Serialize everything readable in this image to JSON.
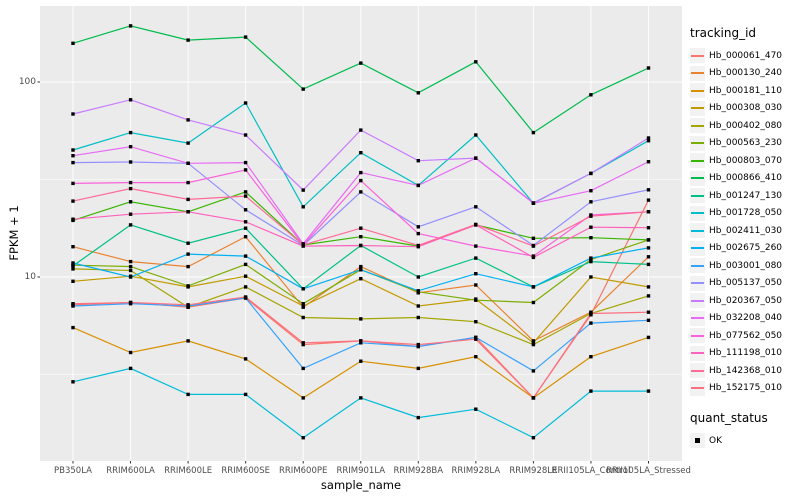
{
  "colors": {
    "panel_bg": "#EBEBEB",
    "grid": "#FFFFFF",
    "axis_text": "#4D4D4D",
    "tick_mark": "#333333",
    "point": "#000000",
    "legend_key_bg": "#F2F2F2"
  },
  "axes": {
    "y_tick_labels": [
      "100",
      "10"
    ],
    "y_tick_values": [
      100,
      10
    ],
    "y_minor_values": [
      31.623,
      3.1623
    ]
  },
  "chart_data": {
    "type": "line",
    "title": "",
    "xlabel": "sample_name",
    "ylabel": "FPKM + 1",
    "y_scale": "log10",
    "ylim": [
      1.17,
      245
    ],
    "grid": "on",
    "legend_position": "right",
    "point_shape": "filled-black-square",
    "categories": [
      "PB350LA",
      "RRIM600LA",
      "RRIM600LE",
      "RRIM600SE",
      "RRIM600PE",
      "RRIM901LA",
      "RRIM928BA",
      "RRIM928LA",
      "RRIM928LE",
      "RRII105LA_Control",
      "RRII105LA_Stressed"
    ],
    "legend": {
      "color_title": "tracking_id",
      "shape_title": "quant_status",
      "shape_entries": [
        {
          "label": "OK"
        }
      ]
    },
    "series": [
      {
        "name": "Hb_000061_470",
        "color": "#F8766D",
        "values": [
          7.2,
          7.4,
          7.0,
          7.8,
          4.5,
          4.7,
          4.4,
          4.9,
          2.4,
          6.4,
          24.8
        ]
      },
      {
        "name": "Hb_000130_240",
        "color": "#EA8331",
        "values": [
          14.3,
          12.0,
          11.3,
          16.1,
          7.0,
          11.3,
          8.3,
          9.1,
          4.7,
          6.6,
          12.7
        ]
      },
      {
        "name": "Hb_000181_110",
        "color": "#D89000",
        "values": [
          5.5,
          4.1,
          4.7,
          3.8,
          2.4,
          3.7,
          3.4,
          3.9,
          2.4,
          3.9,
          4.9
        ]
      },
      {
        "name": "Hb_000308_030",
        "color": "#C09B00",
        "values": [
          9.5,
          10.1,
          8.9,
          10.1,
          7.1,
          9.8,
          7.1,
          7.7,
          4.6,
          10.0,
          8.9
        ]
      },
      {
        "name": "Hb_000402_080",
        "color": "#A3A500",
        "values": [
          11.0,
          10.8,
          7.0,
          8.9,
          6.2,
          6.1,
          6.2,
          5.9,
          4.5,
          6.5,
          8.0
        ]
      },
      {
        "name": "Hb_000563_230",
        "color": "#7CAE00",
        "values": [
          11.5,
          11.3,
          9.0,
          11.6,
          7.3,
          10.9,
          8.4,
          7.6,
          7.4,
          12.3,
          15.5
        ]
      },
      {
        "name": "Hb_000803_070",
        "color": "#39B600",
        "values": [
          19.5,
          24.3,
          21.6,
          27.3,
          14.6,
          16.1,
          14.4,
          18.5,
          15.8,
          15.9,
          15.5
        ]
      },
      {
        "name": "Hb_000866_410",
        "color": "#00BB4E",
        "values": [
          158,
          194,
          164,
          170,
          92,
          125,
          88,
          127,
          55,
          86,
          118
        ]
      },
      {
        "name": "Hb_001247_130",
        "color": "#00C087",
        "values": [
          11.4,
          18.5,
          14.9,
          17.8,
          8.7,
          14.5,
          10.0,
          12.5,
          8.9,
          12.0,
          11.6
        ]
      },
      {
        "name": "Hb_001728_050",
        "color": "#00BFC4",
        "values": [
          44.8,
          55.0,
          48.6,
          78.0,
          22.9,
          43.4,
          29.5,
          53.5,
          23.9,
          34.0,
          50.0
        ]
      },
      {
        "name": "Hb_002411_030",
        "color": "#00BCD8",
        "values": [
          2.9,
          3.4,
          2.5,
          2.5,
          1.5,
          2.4,
          1.9,
          2.1,
          1.5,
          2.6,
          2.6
        ]
      },
      {
        "name": "Hb_002675_260",
        "color": "#00B0F0",
        "values": [
          11.8,
          10.0,
          13.1,
          12.8,
          8.7,
          10.9,
          8.5,
          10.4,
          8.9,
          12.5,
          14.1
        ]
      },
      {
        "name": "Hb_003001_080",
        "color": "#35A2FF",
        "values": [
          7.1,
          7.3,
          7.1,
          7.8,
          3.4,
          4.6,
          4.4,
          4.9,
          3.3,
          5.8,
          6.0
        ]
      },
      {
        "name": "Hb_005137_050",
        "color": "#9590FF",
        "values": [
          38.6,
          38.9,
          38.3,
          22.1,
          14.5,
          27.3,
          18.1,
          22.9,
          14.5,
          24.3,
          28.0
        ]
      },
      {
        "name": "Hb_020367_050",
        "color": "#C77CFF",
        "values": [
          68.5,
          81.0,
          63.9,
          53.5,
          27.9,
          56.7,
          39.5,
          40.7,
          24.0,
          34.0,
          51.6
        ]
      },
      {
        "name": "Hb_032208_040",
        "color": "#E76BF3",
        "values": [
          41.9,
          46.6,
          38.3,
          38.6,
          14.8,
          34.3,
          29.5,
          40.7,
          23.9,
          27.7,
          39.0
        ]
      },
      {
        "name": "Hb_077562_050",
        "color": "#FA62DB",
        "values": [
          30.2,
          30.5,
          30.5,
          35.4,
          14.6,
          31.2,
          16.7,
          14.4,
          12.8,
          20.8,
          21.6
        ]
      },
      {
        "name": "Hb_111198_010",
        "color": "#FF62BC",
        "values": [
          19.8,
          21.0,
          21.6,
          19.2,
          14.4,
          14.5,
          14.3,
          18.5,
          12.6,
          18.0,
          17.9
        ]
      },
      {
        "name": "Hb_142368_010",
        "color": "#FF6A98",
        "values": [
          24.5,
          28.4,
          25.0,
          26.0,
          14.6,
          17.8,
          14.5,
          18.6,
          14.4,
          20.5,
          21.6
        ]
      },
      {
        "name": "Hb_152175_010",
        "color": "#FC717F",
        "values": [
          7.3,
          7.4,
          7.2,
          7.9,
          4.6,
          4.7,
          4.5,
          4.8,
          2.4,
          6.5,
          6.6
        ]
      }
    ]
  }
}
